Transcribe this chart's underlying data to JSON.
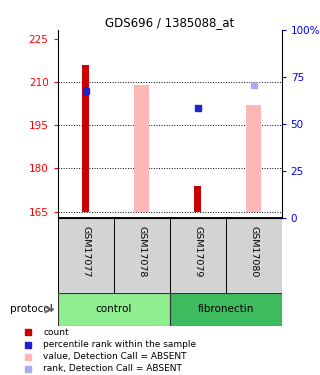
{
  "title": "GDS696 / 1385088_at",
  "samples": [
    "GSM17077",
    "GSM17078",
    "GSM17079",
    "GSM17080"
  ],
  "ylim_left": [
    163,
    228
  ],
  "ylim_right": [
    0,
    100
  ],
  "yticks_left": [
    165,
    180,
    195,
    210,
    225
  ],
  "yticks_right": [
    0,
    25,
    50,
    75,
    100
  ],
  "yticklabels_right": [
    "0",
    "25",
    "50",
    "75",
    "100%"
  ],
  "red_bar_bottoms": [
    165,
    165,
    165,
    165
  ],
  "red_bar_tops": [
    216,
    165,
    174,
    165
  ],
  "pink_bar_bottoms": [
    165,
    165,
    165,
    165
  ],
  "pink_bar_tops": [
    165,
    209,
    165,
    202
  ],
  "blue_dark_y": [
    207,
    null,
    201,
    null
  ],
  "blue_light_y": [
    null,
    null,
    null,
    209
  ],
  "red_color": "#cc0000",
  "pink_color": "#ffb6b6",
  "blue_dark": "#2222cc",
  "blue_light": "#aaaaee",
  "gray_label_bg": "#d3d3d3",
  "control_color": "#90ee90",
  "fibronectin_color": "#3dbb5e",
  "group_ranges": [
    [
      0,
      2
    ],
    [
      2,
      4
    ]
  ],
  "group_names": [
    "control",
    "fibronectin"
  ],
  "legend_items": [
    {
      "color": "#cc0000",
      "label": "count"
    },
    {
      "color": "#2222cc",
      "label": "percentile rank within the sample"
    },
    {
      "color": "#ffb6b6",
      "label": "value, Detection Call = ABSENT"
    },
    {
      "color": "#aaaaee",
      "label": "rank, Detection Call = ABSENT"
    }
  ]
}
